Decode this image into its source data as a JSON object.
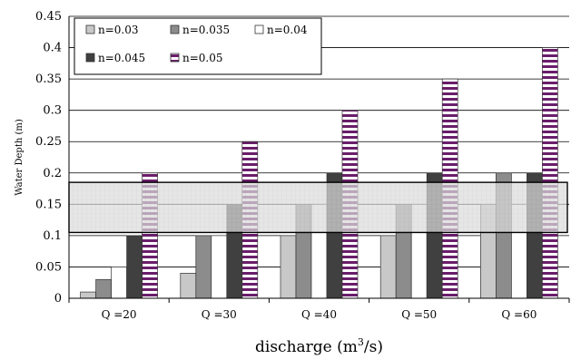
{
  "chart_data": {
    "type": "bar",
    "categories": [
      "Q =20",
      "Q =30",
      "Q =40",
      "Q =50",
      "Q =60"
    ],
    "series": [
      {
        "name": "n=0.03",
        "values": [
          0.01,
          0.04,
          0.1,
          0.1,
          0.15
        ],
        "color": "#c8c8c8",
        "pattern": "solid"
      },
      {
        "name": "n=0.035",
        "values": [
          0.03,
          0.1,
          0.15,
          0.15,
          0.2
        ],
        "color": "#8c8c8c",
        "pattern": "solid"
      },
      {
        "name": "n=0.04",
        "values": [
          0.05,
          0.1,
          0.15,
          0.15,
          0.15
        ],
        "color": "#ffffff",
        "pattern": "solid"
      },
      {
        "name": "n=0.045",
        "values": [
          0.1,
          0.15,
          0.2,
          0.2,
          0.2
        ],
        "color": "#404040",
        "pattern": "solid"
      },
      {
        "name": "n=0.05",
        "values": [
          0.2,
          0.25,
          0.3,
          0.35,
          0.4
        ],
        "color": "#6a1e6a",
        "pattern": "horizontal-stripes"
      }
    ],
    "ylabel": "Water Depth (m)",
    "xlabel": "discharge (m³/s)",
    "ylim": [
      0,
      0.45
    ],
    "yticks": [
      "0",
      "0.05",
      "0.1",
      "0.15",
      "0.2",
      "0.25",
      "0.3",
      "0.35",
      "0.4",
      "0.45"
    ],
    "highlight_band": {
      "from": 0.105,
      "to": 0.185,
      "color": "#d9d9d9"
    },
    "grid": true,
    "legend_position": "top-left"
  }
}
